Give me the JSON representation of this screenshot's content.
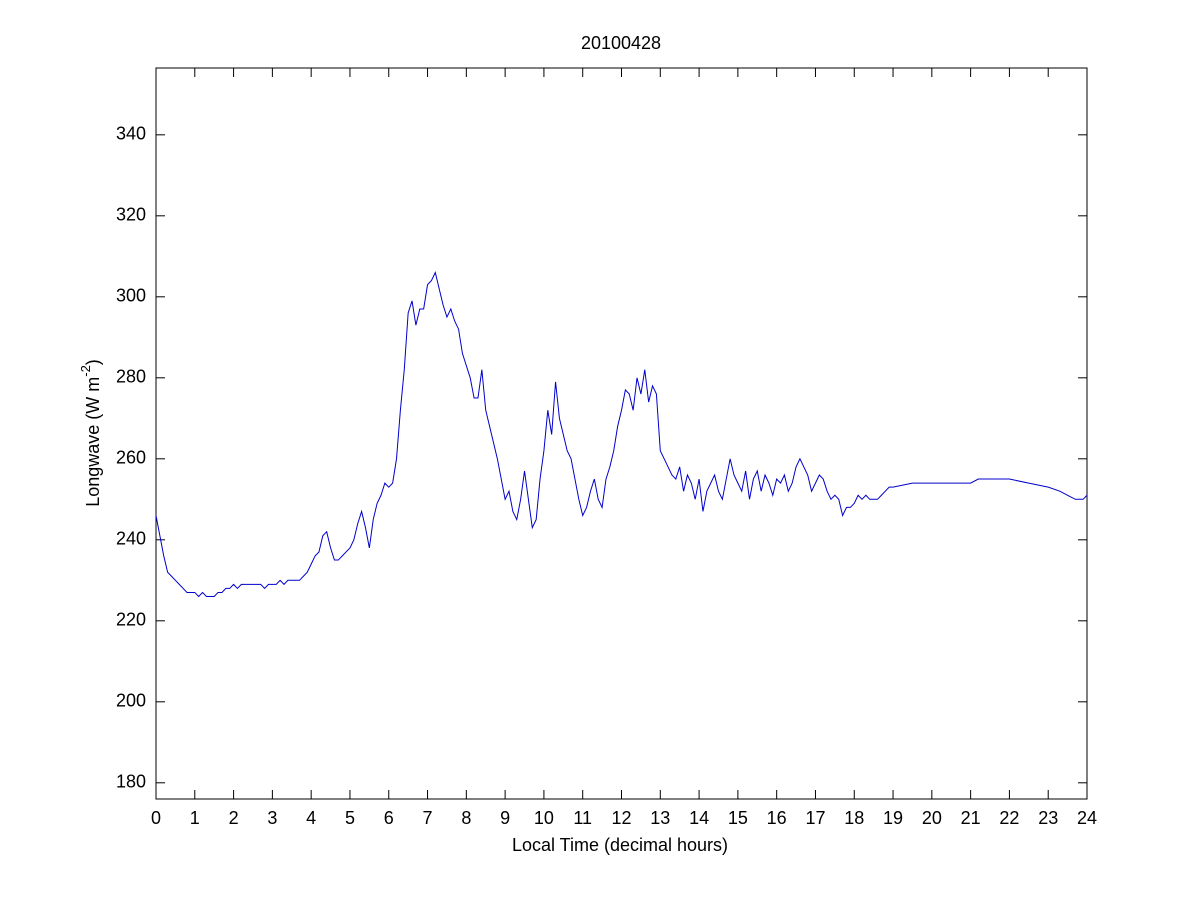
{
  "chart_data": {
    "type": "line",
    "title": "20100428",
    "xlabel": "Local Time (decimal hours)",
    "ylabel": {
      "text": "Longwave (W m",
      "sup": "-2",
      "tail": ")"
    },
    "xlim": [
      0,
      24
    ],
    "xticks": [
      0,
      1,
      2,
      3,
      4,
      5,
      6,
      7,
      8,
      9,
      10,
      11,
      12,
      13,
      14,
      15,
      16,
      17,
      18,
      19,
      20,
      21,
      22,
      23,
      24
    ],
    "ylim": [
      176,
      356.5
    ],
    "yticks": [
      180,
      200,
      220,
      240,
      260,
      280,
      300,
      320,
      340
    ],
    "grid": false,
    "series": [
      {
        "color": "#0000cc",
        "x": [
          0,
          0.1,
          0.2,
          0.3,
          0.4,
          0.5,
          0.6,
          0.7,
          0.8,
          0.9,
          1,
          1.1,
          1.2,
          1.3,
          1.4,
          1.5,
          1.6,
          1.7,
          1.8,
          1.9,
          2,
          2.1,
          2.2,
          2.3,
          2.4,
          2.5,
          2.6,
          2.7,
          2.8,
          2.9,
          3,
          3.1,
          3.2,
          3.3,
          3.4,
          3.5,
          3.6,
          3.7,
          3.8,
          3.9,
          4,
          4.1,
          4.2,
          4.3,
          4.4,
          4.5,
          4.6,
          4.7,
          4.8,
          4.9,
          5,
          5.1,
          5.2,
          5.3,
          5.4,
          5.5,
          5.6,
          5.7,
          5.8,
          5.9,
          6,
          6.1,
          6.2,
          6.3,
          6.4,
          6.5,
          6.6,
          6.7,
          6.8,
          6.9,
          7,
          7.1,
          7.2,
          7.3,
          7.4,
          7.5,
          7.6,
          7.7,
          7.8,
          7.9,
          8,
          8.1,
          8.2,
          8.3,
          8.4,
          8.5,
          8.6,
          8.7,
          8.8,
          8.9,
          9,
          9.1,
          9.2,
          9.3,
          9.4,
          9.5,
          9.6,
          9.7,
          9.8,
          9.9,
          10,
          10.1,
          10.2,
          10.3,
          10.4,
          10.5,
          10.6,
          10.7,
          10.8,
          10.9,
          11,
          11.1,
          11.2,
          11.3,
          11.4,
          11.5,
          11.6,
          11.7,
          11.8,
          11.9,
          12,
          12.1,
          12.2,
          12.3,
          12.4,
          12.5,
          12.6,
          12.7,
          12.8,
          12.9,
          13,
          13.1,
          13.2,
          13.3,
          13.4,
          13.5,
          13.6,
          13.7,
          13.8,
          13.9,
          14,
          14.1,
          14.2,
          14.3,
          14.4,
          14.5,
          14.6,
          14.7,
          14.8,
          14.9,
          15,
          15.1,
          15.2,
          15.3,
          15.4,
          15.5,
          15.6,
          15.7,
          15.8,
          15.9,
          16,
          16.1,
          16.2,
          16.3,
          16.4,
          16.5,
          16.6,
          16.7,
          16.8,
          16.9,
          17,
          17.1,
          17.2,
          17.3,
          17.4,
          17.5,
          17.6,
          17.7,
          17.8,
          17.9,
          18,
          18.1,
          18.2,
          18.3,
          18.4,
          18.5,
          18.6,
          18.7,
          18.8,
          18.9,
          19,
          19.5,
          20,
          20.5,
          21,
          21.2,
          21.5,
          22,
          22.5,
          23,
          23.3,
          23.5,
          23.7,
          23.9,
          24
        ],
        "values": [
          246,
          241,
          236,
          232,
          231,
          230,
          229,
          228,
          227,
          227,
          227,
          226,
          227,
          226,
          226,
          226,
          227,
          227,
          228,
          228,
          229,
          228,
          229,
          229,
          229,
          229,
          229,
          229,
          228,
          229,
          229,
          229,
          230,
          229,
          230,
          230,
          230,
          230,
          231,
          232,
          234,
          236,
          237,
          241,
          242,
          238,
          235,
          235,
          236,
          237,
          238,
          240,
          244,
          247,
          243,
          238,
          245,
          249,
          251,
          254,
          253,
          254,
          260,
          272,
          282,
          296,
          299,
          293,
          297,
          297,
          303,
          304,
          306,
          302,
          298,
          295,
          297,
          294,
          292,
          286,
          283,
          280,
          275,
          275,
          282,
          272,
          268,
          264,
          260,
          255,
          250,
          252,
          247,
          245,
          250,
          257,
          250,
          243,
          245,
          255,
          262,
          272,
          266,
          279,
          270,
          266,
          262,
          260,
          255,
          250,
          246,
          248,
          252,
          255,
          250,
          248,
          255,
          258,
          262,
          268,
          272,
          277,
          276,
          272,
          280,
          276,
          282,
          274,
          278,
          276,
          262,
          260,
          258,
          256,
          255,
          258,
          252,
          256,
          254,
          250,
          255,
          247,
          252,
          254,
          256,
          252,
          250,
          255,
          260,
          256,
          254,
          252,
          257,
          250,
          255,
          257,
          252,
          256,
          254,
          251,
          255,
          254,
          256,
          252,
          254,
          258,
          260,
          258,
          256,
          252,
          254,
          256,
          255,
          252,
          250,
          251,
          250,
          246,
          248,
          248,
          249,
          251,
          250,
          251,
          250,
          250,
          250,
          251,
          252,
          253,
          253,
          254,
          254,
          254,
          254,
          255,
          255,
          255,
          254,
          253,
          252,
          251,
          250,
          250,
          251
        ]
      }
    ]
  }
}
